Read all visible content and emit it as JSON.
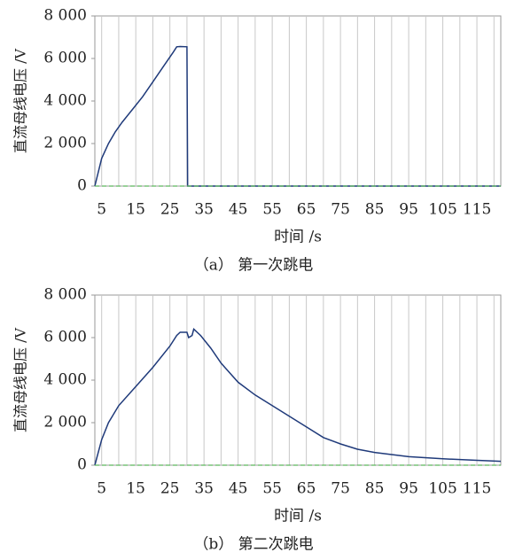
{
  "chart_data": [
    {
      "type": "line",
      "caption": "（a） 第一次跳电",
      "xlabel": "时间 /s",
      "ylabel": "直流母线电压 /V",
      "xlim": [
        3,
        122
      ],
      "ylim": [
        0,
        8000
      ],
      "xticks": [
        5,
        15,
        25,
        35,
        45,
        55,
        65,
        75,
        85,
        95,
        105,
        115
      ],
      "xminor_ticks": [
        10,
        20,
        30,
        40,
        50,
        60,
        70,
        80,
        90,
        100,
        110,
        120
      ],
      "yticks": [
        {
          "value": 0,
          "label": "0"
        },
        {
          "value": 2000,
          "label": "2 000"
        },
        {
          "value": 4000,
          "label": "4 000"
        },
        {
          "value": 6000,
          "label": "6 000"
        },
        {
          "value": 8000,
          "label": "8 000"
        }
      ],
      "grid": true,
      "series": [
        {
          "color": "#1f3a7a",
          "x": [
            3,
            5,
            7,
            9,
            11,
            14,
            17,
            20,
            23,
            26,
            27,
            28,
            30,
            30.2,
            31,
            60,
            122
          ],
          "values": [
            0,
            1300,
            2000,
            2550,
            3000,
            3600,
            4200,
            4900,
            5600,
            6300,
            6550,
            6560,
            6550,
            0,
            0,
            0,
            0
          ]
        },
        {
          "color": "#5cb85c",
          "dash": true,
          "x": [
            3,
            122
          ],
          "values": [
            0,
            0
          ]
        }
      ]
    },
    {
      "type": "line",
      "caption": "（b） 第二次跳电",
      "xlabel": "时间 /s",
      "ylabel": "直流母线电压 /V",
      "xlim": [
        3,
        122
      ],
      "ylim": [
        0,
        8000
      ],
      "xticks": [
        5,
        15,
        25,
        35,
        45,
        55,
        65,
        75,
        85,
        95,
        105,
        115
      ],
      "xminor_ticks": [
        10,
        20,
        30,
        40,
        50,
        60,
        70,
        80,
        90,
        100,
        110,
        120
      ],
      "yticks": [
        {
          "value": 0,
          "label": "0"
        },
        {
          "value": 2000,
          "label": "2 000"
        },
        {
          "value": 4000,
          "label": "4 000"
        },
        {
          "value": 6000,
          "label": "6 000"
        },
        {
          "value": 8000,
          "label": "8 000"
        }
      ],
      "grid": true,
      "series": [
        {
          "color": "#1f3a7a",
          "x": [
            3,
            5,
            7,
            10,
            15,
            20,
            25,
            27,
            28,
            30,
            30.5,
            31.5,
            32,
            34,
            37,
            40,
            45,
            50,
            55,
            60,
            65,
            70,
            75,
            80,
            85,
            95,
            105,
            115,
            122
          ],
          "values": [
            0,
            1200,
            2000,
            2800,
            3700,
            4600,
            5600,
            6100,
            6250,
            6250,
            6000,
            6100,
            6400,
            6100,
            5500,
            4800,
            3900,
            3300,
            2800,
            2300,
            1800,
            1300,
            1000,
            750,
            600,
            400,
            300,
            230,
            180
          ]
        },
        {
          "color": "#5cb85c",
          "dash": true,
          "x": [
            3,
            122
          ],
          "values": [
            0,
            0
          ]
        }
      ]
    }
  ]
}
